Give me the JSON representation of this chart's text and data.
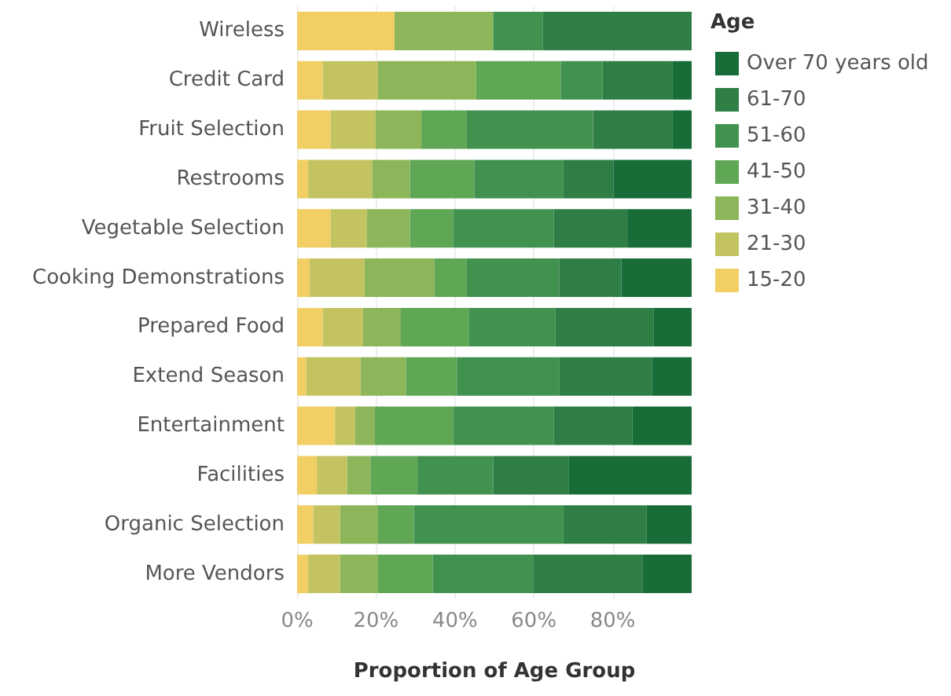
{
  "chart_data": {
    "type": "bar",
    "orientation": "horizontal",
    "stacked": true,
    "xlabel": "Proportion of Age Group",
    "legend_title": "Age",
    "legend": "right",
    "grid": "x",
    "categories": [
      "Wireless",
      "Credit Card",
      "Fruit Selection",
      "Restrooms",
      "Vegetable Selection",
      "Cooking Demonstrations",
      "Prepared Food",
      "Extend Season",
      "Entertainment",
      "Facilities",
      "Organic Selection",
      "More Vendors"
    ],
    "xlim": [
      0,
      100
    ],
    "xticks": [
      {
        "value": 0,
        "label": "0%"
      },
      {
        "value": 20,
        "label": "20%"
      },
      {
        "value": 40,
        "label": "40%"
      },
      {
        "value": 60,
        "label": "60%"
      },
      {
        "value": 80,
        "label": "80%"
      }
    ],
    "series": [
      {
        "name": "15-20",
        "color": "#f2cf64",
        "values": [
          24.7,
          6.5,
          8.5,
          2.8,
          8.5,
          3.2,
          6.5,
          2.3,
          9.6,
          5.0,
          4.1,
          2.8
        ]
      },
      {
        "name": "21-30",
        "color": "#c3c461",
        "values": [
          0,
          14.0,
          11.4,
          16.2,
          9.2,
          13.9,
          10.2,
          13.8,
          5.1,
          7.7,
          6.8,
          8.1
        ]
      },
      {
        "name": "31-40",
        "color": "#8db55a",
        "values": [
          25.0,
          24.9,
          11.6,
          9.6,
          10.9,
          17.7,
          9.6,
          11.5,
          5.0,
          5.9,
          9.6,
          9.6
        ]
      },
      {
        "name": "41-50",
        "color": "#5fa655",
        "values": [
          0,
          21.4,
          11.5,
          16.3,
          11.0,
          8.2,
          17.3,
          12.9,
          19.9,
          11.9,
          9.1,
          13.9
        ]
      },
      {
        "name": "51-60",
        "color": "#42924f",
        "values": [
          12.5,
          10.6,
          32.0,
          22.6,
          25.5,
          23.4,
          21.9,
          26.0,
          25.5,
          19.2,
          37.9,
          25.4
        ]
      },
      {
        "name": "61-70",
        "color": "#2e7e45",
        "values": [
          37.8,
          17.8,
          20.2,
          12.7,
          18.6,
          15.8,
          24.9,
          23.4,
          19.9,
          19.2,
          21.1,
          27.7
        ]
      },
      {
        "name": "Over 70 years old",
        "color": "#176c37",
        "values": [
          0,
          4.8,
          4.8,
          19.8,
          16.3,
          17.8,
          9.6,
          10.1,
          15.0,
          31.1,
          11.4,
          12.5
        ]
      }
    ]
  }
}
